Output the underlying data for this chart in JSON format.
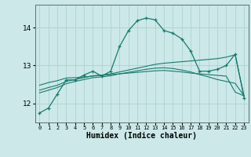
{
  "xlabel": "Humidex (Indice chaleur)",
  "ylabel": "",
  "background_color": "#cce8e8",
  "line_color": "#1a7a6e",
  "grid_color": "#a8cece",
  "x": [
    0,
    1,
    2,
    3,
    4,
    5,
    6,
    7,
    8,
    9,
    10,
    11,
    12,
    13,
    14,
    15,
    16,
    17,
    18,
    19,
    20,
    21,
    22,
    23
  ],
  "line1": [
    11.75,
    11.88,
    12.25,
    12.62,
    12.62,
    12.75,
    12.85,
    12.72,
    12.85,
    13.5,
    13.92,
    14.18,
    14.25,
    14.2,
    13.92,
    13.85,
    13.7,
    13.38,
    12.85,
    12.85,
    12.9,
    13.0,
    13.3,
    12.15
  ],
  "line2": [
    12.48,
    12.55,
    12.6,
    12.67,
    12.68,
    12.7,
    12.72,
    12.74,
    12.76,
    12.78,
    12.8,
    12.82,
    12.84,
    12.86,
    12.87,
    12.85,
    12.83,
    12.8,
    12.78,
    12.76,
    12.74,
    12.72,
    12.3,
    12.2
  ],
  "line3": [
    12.35,
    12.42,
    12.48,
    12.58,
    12.63,
    12.68,
    12.73,
    12.75,
    12.78,
    12.83,
    12.88,
    12.93,
    12.98,
    13.03,
    13.06,
    13.08,
    13.1,
    13.12,
    13.14,
    13.16,
    13.18,
    13.22,
    13.28,
    12.2
  ],
  "line4": [
    12.28,
    12.35,
    12.42,
    12.52,
    12.58,
    12.63,
    12.68,
    12.7,
    12.73,
    12.78,
    12.82,
    12.86,
    12.9,
    12.93,
    12.94,
    12.92,
    12.88,
    12.83,
    12.76,
    12.7,
    12.63,
    12.58,
    12.53,
    12.2
  ],
  "ylim": [
    11.5,
    14.6
  ],
  "yticks": [
    12,
    13,
    14
  ],
  "xticks": [
    0,
    1,
    2,
    3,
    4,
    5,
    6,
    7,
    8,
    9,
    10,
    11,
    12,
    13,
    14,
    15,
    16,
    17,
    18,
    19,
    20,
    21,
    22,
    23
  ]
}
